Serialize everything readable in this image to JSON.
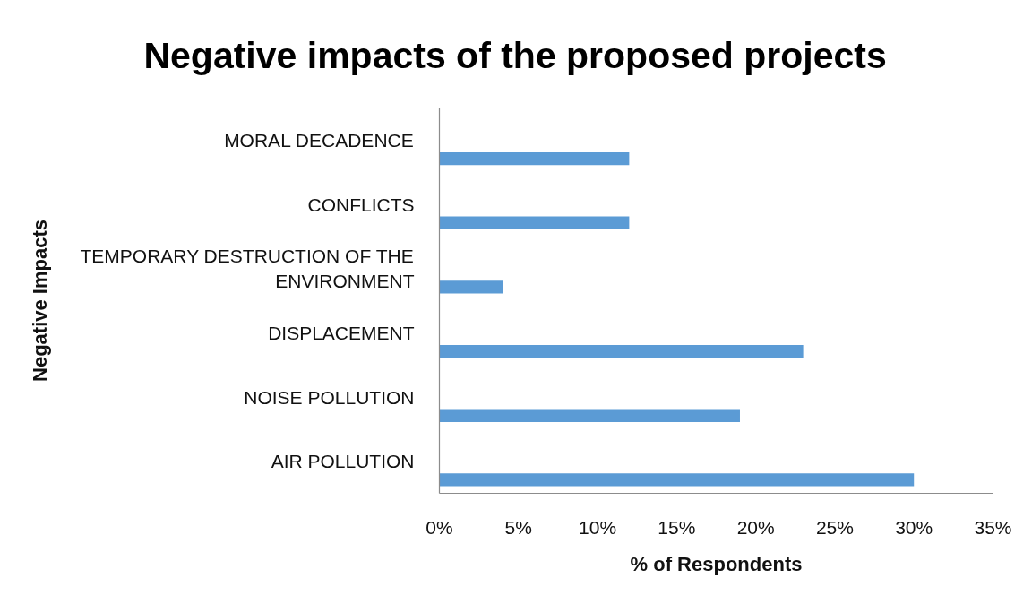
{
  "chart_data": {
    "type": "bar",
    "orientation": "horizontal",
    "title": "Negative impacts of the proposed projects",
    "xlabel": "% of Respondents",
    "ylabel": "Negative Impacts",
    "categories": [
      "MORAL DECADENCE",
      "CONFLICTS",
      "TEMPORARY DESTRUCTION OF THE ENVIRONMENT",
      "DISPLACEMENT",
      "NOISE POLLUTION",
      "AIR POLLUTION"
    ],
    "values": [
      12,
      12,
      4,
      23,
      19,
      30
    ],
    "color": "#5b9bd5",
    "xlim": [
      0,
      35
    ],
    "xticks": [
      {
        "value": 0,
        "label": "0%"
      },
      {
        "value": 5,
        "label": "5%"
      },
      {
        "value": 10,
        "label": "10%"
      },
      {
        "value": 15,
        "label": "15%"
      },
      {
        "value": 20,
        "label": "20%"
      },
      {
        "value": 25,
        "label": "25%"
      },
      {
        "value": 30,
        "label": "30%"
      },
      {
        "value": 35,
        "label": "35%"
      }
    ]
  }
}
